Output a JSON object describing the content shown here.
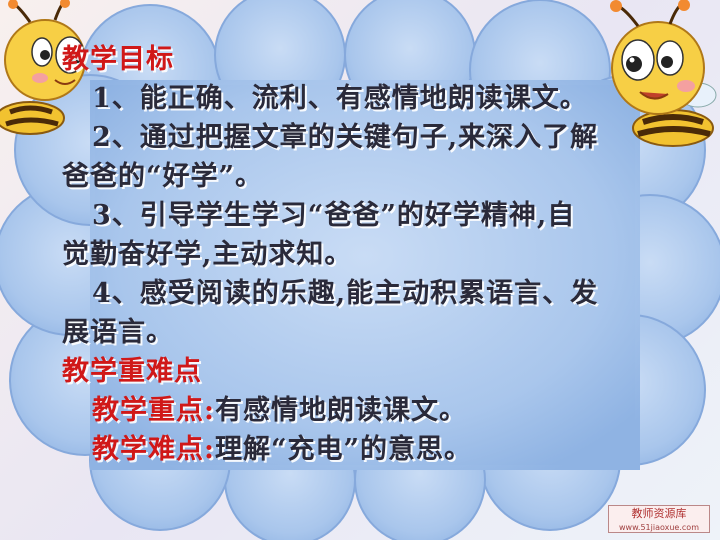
{
  "objectives": {
    "heading": "教学目标",
    "item1": "1、能正确、流利、有感情地朗读课文。",
    "item2_line1": "2、通过把握文章的关键句子,来深入了解",
    "item2_line2": "爸爸的“好学”。",
    "item3_line1": "3、引导学生学习“爸爸”的好学精神,自",
    "item3_line2": "觉勤奋好学,主动求知。",
    "item4_line1": "4、感受阅读的乐趣,能主动积累语言、发",
    "item4_line2": "展语言。"
  },
  "key_points": {
    "heading": "教学重难点",
    "focus_label": "教学重点:",
    "focus_text": "有感情地朗读课文。",
    "difficulty_label": "教学难点:",
    "difficulty_text": "理解“充电”的意思。"
  },
  "watermark": {
    "text": "教师资源库",
    "sub": "www.51jiaoxue.com"
  },
  "colors": {
    "heading": "#d01818",
    "body_text": "#2a2a3a",
    "cloud": "#a9c6ec"
  },
  "icons": [
    "bee-left-icon",
    "bee-right-icon"
  ]
}
